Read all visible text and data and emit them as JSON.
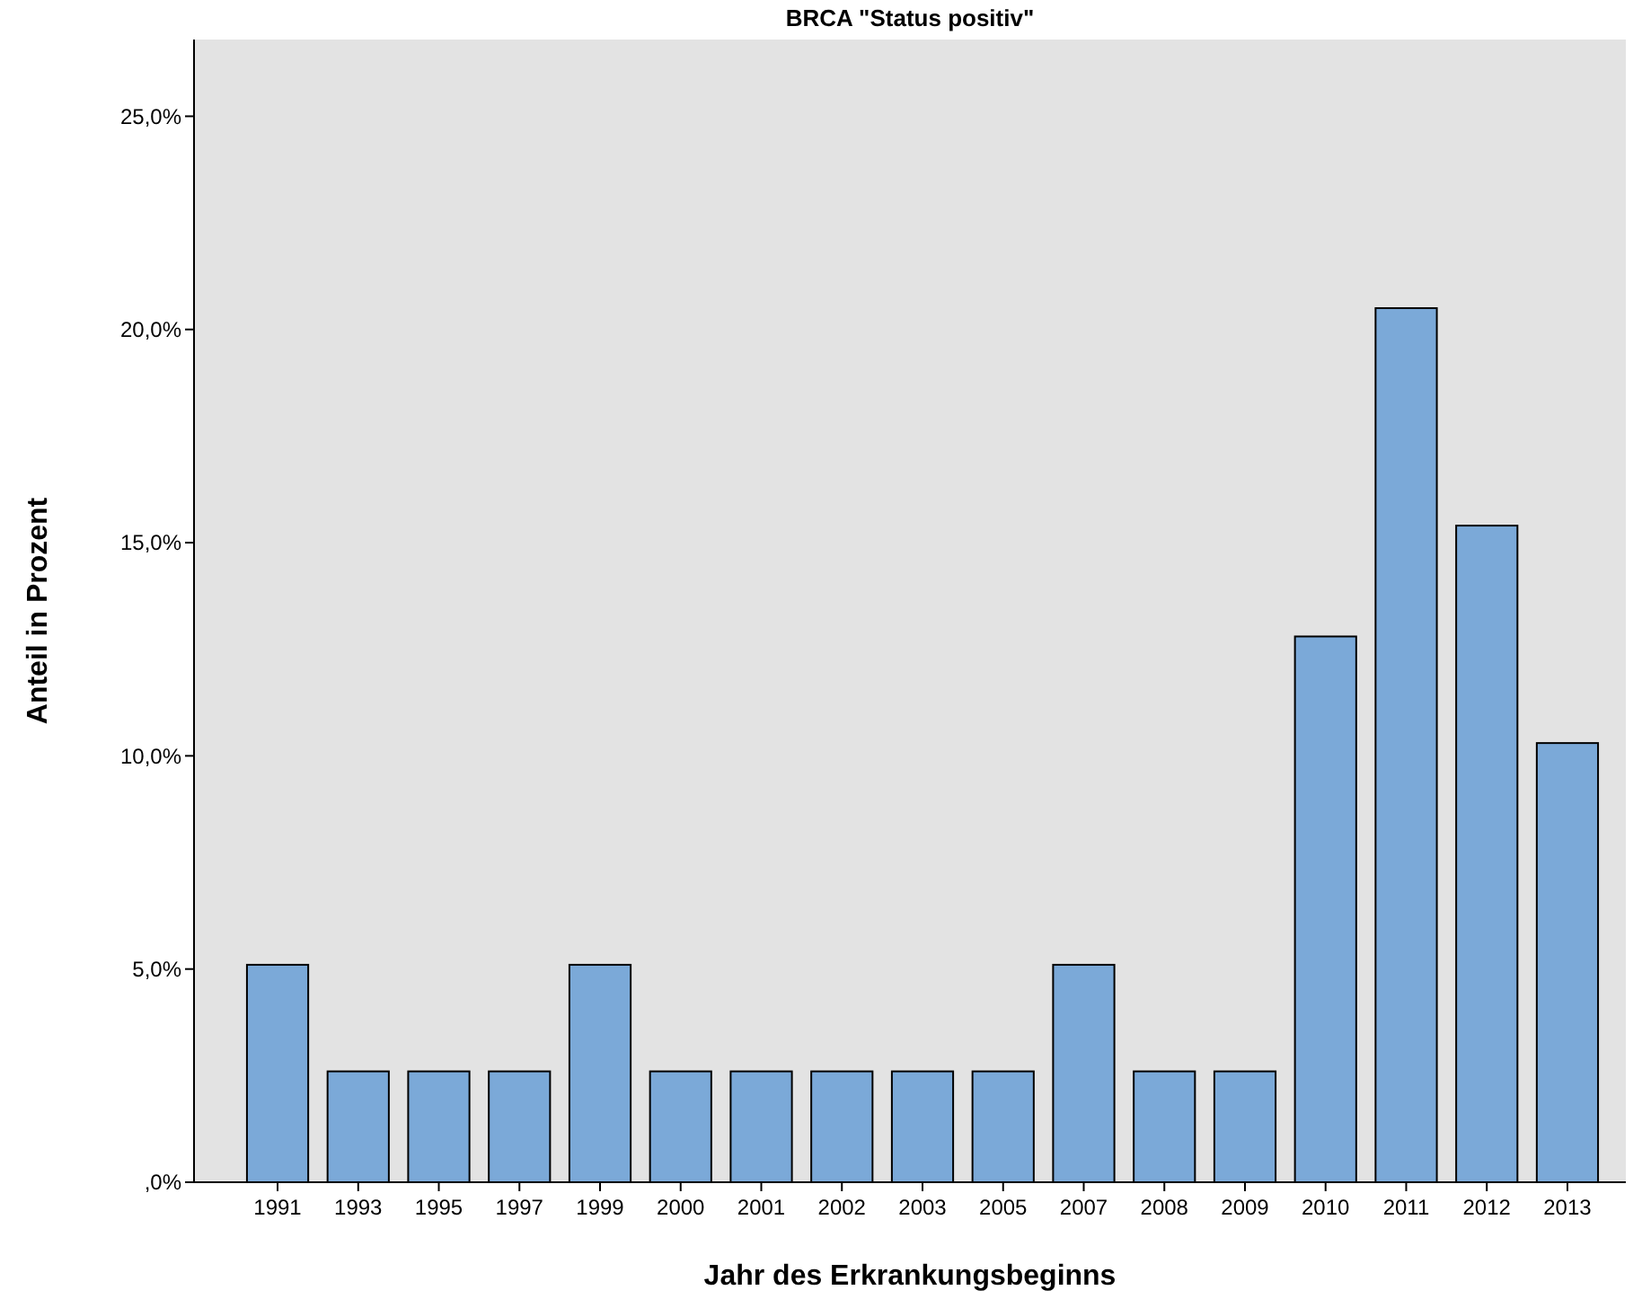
{
  "chart_data": {
    "type": "bar",
    "title": "BRCA \"Status positiv\"",
    "xlabel": "Jahr des Erkrankungsbeginns",
    "ylabel": "Anteil in Prozent",
    "categories": [
      "1991",
      "1993",
      "1995",
      "1997",
      "1999",
      "2000",
      "2001",
      "2002",
      "2003",
      "2005",
      "2007",
      "2008",
      "2009",
      "2010",
      "2011",
      "2012",
      "2013"
    ],
    "values": [
      5.1,
      2.6,
      2.6,
      2.6,
      5.1,
      2.6,
      2.6,
      2.6,
      2.6,
      2.6,
      5.1,
      2.6,
      2.6,
      12.8,
      20.5,
      15.4,
      10.3
    ],
    "color": "#7ba9d8",
    "ylim": [
      0,
      26.8
    ],
    "yticks": [
      {
        "value": 0,
        "label": ",0%"
      },
      {
        "value": 5,
        "label": "5,0%"
      },
      {
        "value": 10,
        "label": "10,0%"
      },
      {
        "value": 15,
        "label": "15,0%"
      },
      {
        "value": 20,
        "label": "20,0%"
      },
      {
        "value": 25,
        "label": "25,0%"
      }
    ],
    "grid": false
  }
}
